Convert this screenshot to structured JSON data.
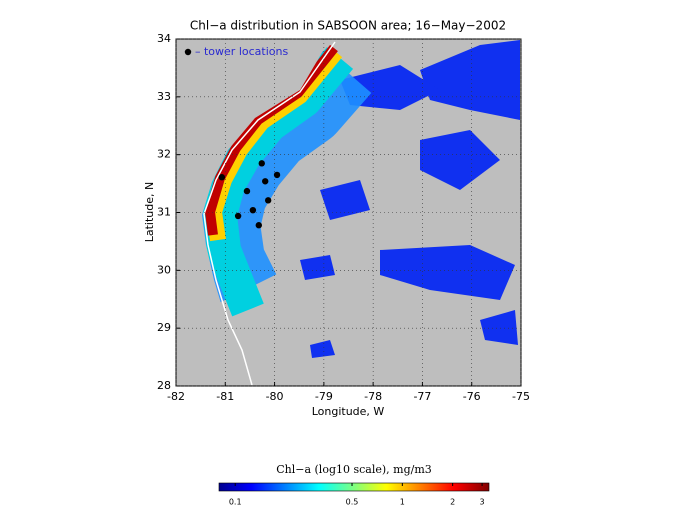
{
  "map": {
    "title": "Chl−a distribution in SABSOON area; 16−May−2002",
    "xlabel": "Longitude, W",
    "ylabel": "Latitude, N",
    "xlim": [
      -82,
      -75
    ],
    "ylim": [
      28,
      34
    ],
    "xticks": [
      -82,
      -81,
      -80,
      -79,
      -78,
      -77,
      -76,
      -75
    ],
    "yticks": [
      28,
      29,
      30,
      31,
      32,
      33,
      34
    ],
    "grid": true,
    "towers": {
      "label": "– tower locations",
      "color": "#000000",
      "points": [
        [
          -81.07,
          31.61
        ],
        [
          -80.26,
          31.85
        ],
        [
          -79.95,
          31.65
        ],
        [
          -80.19,
          31.54
        ],
        [
          -80.56,
          31.37
        ],
        [
          -80.13,
          31.21
        ],
        [
          -80.44,
          31.04
        ],
        [
          -80.74,
          30.94
        ],
        [
          -80.32,
          30.78
        ]
      ]
    },
    "colorbar": {
      "title": "Chl−a (log10 scale), mg/m3",
      "clim": [
        0.08,
        3.3
      ],
      "ticks": [
        0.1,
        0.5,
        1,
        2,
        3
      ]
    }
  }
}
